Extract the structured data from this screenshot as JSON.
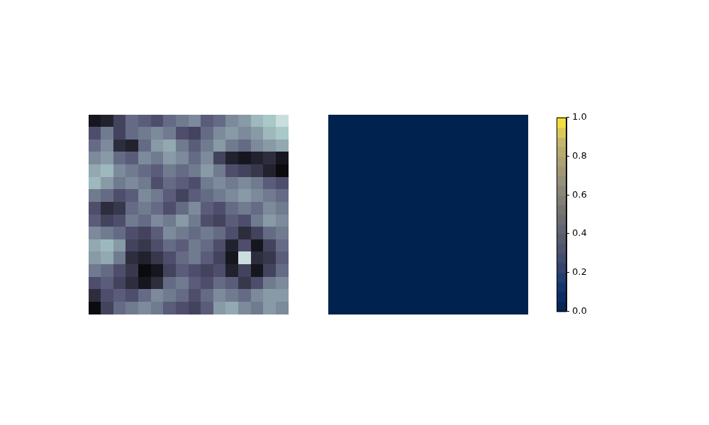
{
  "chart_data": [
    {
      "type": "heatmap",
      "color": "bone",
      "color_range": [
        0,
        1
      ],
      "tick_labels": false,
      "cells": [
        [
          0.1,
          0.15,
          0.3,
          0.45,
          0.4,
          0.35,
          0.45,
          0.5,
          0.55,
          0.4,
          0.45,
          0.55,
          0.6,
          0.7,
          0.75,
          0.85
        ],
        [
          0.35,
          0.5,
          0.3,
          0.45,
          0.5,
          0.55,
          0.5,
          0.35,
          0.3,
          0.45,
          0.55,
          0.6,
          0.55,
          0.6,
          0.7,
          0.75
        ],
        [
          0.45,
          0.55,
          0.2,
          0.15,
          0.45,
          0.6,
          0.65,
          0.5,
          0.4,
          0.5,
          0.6,
          0.5,
          0.45,
          0.55,
          0.6,
          0.65
        ],
        [
          0.55,
          0.6,
          0.45,
          0.4,
          0.55,
          0.5,
          0.6,
          0.55,
          0.45,
          0.55,
          0.3,
          0.15,
          0.1,
          0.15,
          0.2,
          0.1
        ],
        [
          0.65,
          0.7,
          0.55,
          0.5,
          0.45,
          0.4,
          0.5,
          0.45,
          0.5,
          0.6,
          0.5,
          0.35,
          0.3,
          0.25,
          0.15,
          0.05
        ],
        [
          0.7,
          0.6,
          0.5,
          0.55,
          0.5,
          0.35,
          0.45,
          0.4,
          0.35,
          0.5,
          0.55,
          0.5,
          0.55,
          0.5,
          0.4,
          0.35
        ],
        [
          0.5,
          0.45,
          0.35,
          0.4,
          0.55,
          0.5,
          0.4,
          0.3,
          0.4,
          0.45,
          0.5,
          0.55,
          0.6,
          0.55,
          0.5,
          0.45
        ],
        [
          0.35,
          0.2,
          0.25,
          0.45,
          0.5,
          0.45,
          0.35,
          0.45,
          0.55,
          0.4,
          0.35,
          0.45,
          0.5,
          0.45,
          0.55,
          0.5
        ],
        [
          0.4,
          0.3,
          0.35,
          0.5,
          0.45,
          0.55,
          0.5,
          0.6,
          0.5,
          0.35,
          0.3,
          0.4,
          0.35,
          0.5,
          0.6,
          0.55
        ],
        [
          0.55,
          0.5,
          0.45,
          0.35,
          0.3,
          0.4,
          0.55,
          0.5,
          0.45,
          0.5,
          0.45,
          0.35,
          0.2,
          0.3,
          0.45,
          0.5
        ],
        [
          0.65,
          0.7,
          0.6,
          0.3,
          0.25,
          0.35,
          0.45,
          0.4,
          0.5,
          0.45,
          0.35,
          0.15,
          0.35,
          0.1,
          0.3,
          0.45
        ],
        [
          0.6,
          0.65,
          0.5,
          0.2,
          0.15,
          0.25,
          0.35,
          0.45,
          0.5,
          0.4,
          0.3,
          0.1,
          0.85,
          0.2,
          0.25,
          0.4
        ],
        [
          0.5,
          0.45,
          0.35,
          0.25,
          0.05,
          0.1,
          0.3,
          0.4,
          0.35,
          0.3,
          0.35,
          0.15,
          0.3,
          0.1,
          0.3,
          0.45
        ],
        [
          0.35,
          0.4,
          0.3,
          0.2,
          0.1,
          0.2,
          0.45,
          0.5,
          0.4,
          0.35,
          0.45,
          0.4,
          0.25,
          0.35,
          0.5,
          0.55
        ],
        [
          0.2,
          0.35,
          0.4,
          0.35,
          0.45,
          0.55,
          0.5,
          0.45,
          0.35,
          0.45,
          0.55,
          0.5,
          0.45,
          0.55,
          0.6,
          0.6
        ],
        [
          0.05,
          0.3,
          0.45,
          0.5,
          0.55,
          0.5,
          0.4,
          0.35,
          0.3,
          0.4,
          0.6,
          0.65,
          0.55,
          0.5,
          0.6,
          0.55
        ]
      ]
    },
    {
      "type": "heatmap",
      "color": "cividis",
      "tick_labels": false,
      "cells": [
        [
          0,
          0,
          0,
          0,
          0,
          0,
          0,
          0,
          0,
          0,
          0,
          0,
          0,
          0,
          0,
          0
        ],
        [
          0,
          0,
          0,
          0,
          0,
          0,
          0,
          0,
          0,
          0,
          0,
          0,
          0,
          0,
          0,
          0
        ],
        [
          0,
          0,
          0,
          0,
          0,
          0,
          0,
          0,
          0,
          0,
          0,
          0,
          0,
          0,
          0,
          0
        ],
        [
          0,
          0,
          0,
          0,
          0,
          0,
          0,
          0,
          0,
          0,
          0,
          0,
          0,
          0,
          0,
          0
        ],
        [
          0,
          0,
          0,
          0,
          0,
          0,
          0,
          0,
          0,
          0,
          0,
          0,
          0,
          0,
          0,
          0
        ],
        [
          0,
          0,
          0,
          0,
          0,
          0,
          0,
          0,
          0,
          0,
          0,
          0,
          0,
          0,
          0,
          0
        ],
        [
          0,
          0,
          0,
          0,
          0,
          0,
          0,
          0,
          0,
          0,
          0,
          0,
          0,
          0,
          0,
          0
        ],
        [
          0,
          0,
          0,
          0,
          0,
          0,
          0,
          0,
          0,
          0,
          0,
          0,
          0,
          0,
          0,
          0
        ],
        [
          0,
          0,
          0,
          0,
          0,
          0,
          0,
          0,
          0,
          0,
          0,
          0,
          0,
          0,
          0,
          0
        ],
        [
          0,
          0,
          0,
          0,
          0,
          0,
          0,
          0,
          0,
          0,
          0,
          0,
          0,
          0,
          0,
          0
        ],
        [
          0,
          0,
          0,
          0,
          0,
          0,
          0,
          0,
          0,
          0,
          0,
          0,
          0,
          0,
          0,
          0
        ],
        [
          0,
          0,
          0,
          0,
          0,
          0,
          0,
          0,
          0,
          0,
          0,
          0,
          0,
          0,
          0,
          0
        ],
        [
          0,
          0,
          0,
          0,
          0,
          0,
          0,
          0,
          0,
          0,
          0,
          0,
          0,
          0,
          0,
          0
        ],
        [
          0,
          0,
          0,
          0,
          0,
          0,
          0,
          0,
          0,
          0,
          0,
          0,
          0,
          0,
          0,
          0
        ],
        [
          0,
          0,
          0,
          0,
          0,
          0,
          0,
          0,
          0,
          0,
          0,
          0,
          0,
          0,
          0,
          0
        ],
        [
          0,
          0,
          0,
          0,
          0,
          0,
          0,
          0,
          0,
          0,
          0,
          0,
          0,
          0,
          0,
          0
        ]
      ],
      "colorbar": {
        "range": [
          0,
          1
        ],
        "ticks": [
          {
            "value": 0,
            "label": "0.0"
          },
          0.2,
          0.4,
          0.6,
          0.8,
          {
            "value": 1,
            "label": "1.0"
          }
        ]
      }
    }
  ]
}
